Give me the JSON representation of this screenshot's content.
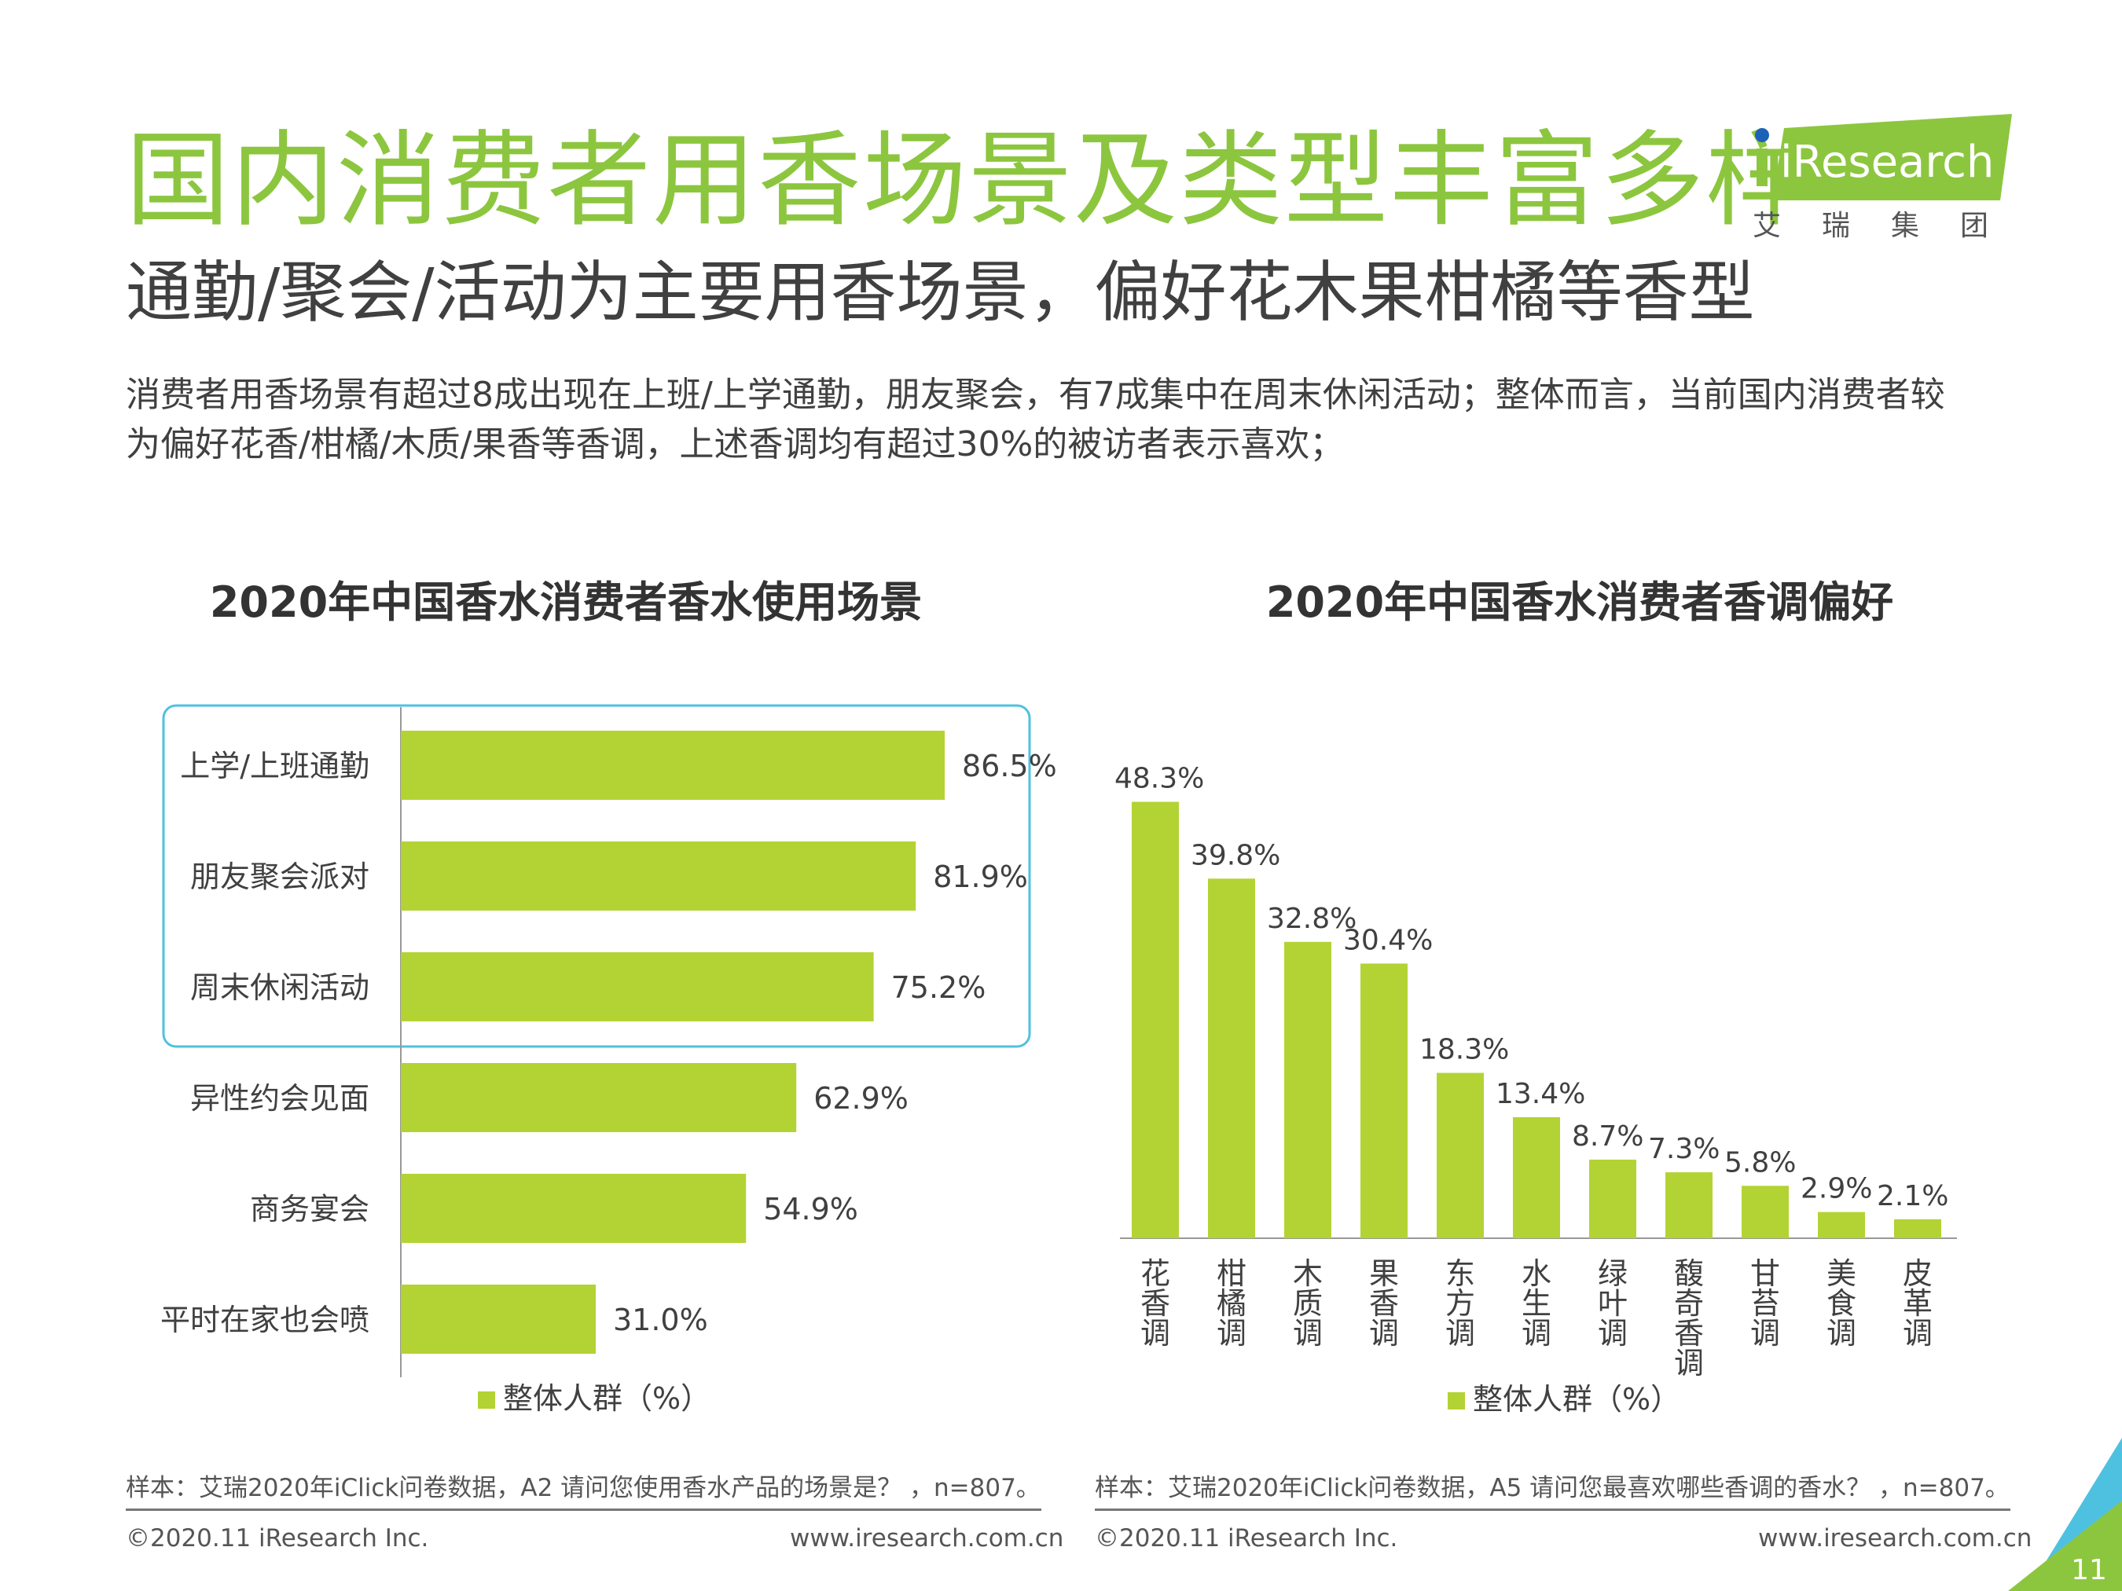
{
  "page": {
    "title": "国内消费者用香场景及类型丰富多样",
    "subtitle": "通勤/聚会/活动为主要用香场景，偏好花木果柑橘等香型",
    "intro_line1": "消费者用香场景有超过8成出现在上班/上学通勤，朋友聚会，有7成集中在周末休闲活动；整体而言，当前国内消费者较",
    "intro_line2": "为偏好花香/柑橘/木质/果香等香调，上述香调均有超过30%的被访者表示喜欢；",
    "page_number": "11"
  },
  "logo": {
    "brand": "iResearch",
    "chinese": "艾瑞集团"
  },
  "colors": {
    "accent_green": "#8cc63f",
    "bar_green": "#b3d334",
    "highlight_box": "#4fc1e0"
  },
  "chart_data": [
    {
      "type": "bar",
      "orientation": "horizontal",
      "title": "2020年中国香水消费者香水使用场景",
      "categories": [
        "上学/上班通勤",
        "朋友聚会派对",
        "周末休闲活动",
        "异性约会见面",
        "商务宴会",
        "平时在家也会喷"
      ],
      "series": [
        {
          "name": "整体人群（%）",
          "values": [
            86.5,
            81.9,
            75.2,
            62.9,
            54.9,
            31.0
          ]
        }
      ],
      "value_labels": [
        "86.5%",
        "81.9%",
        "75.2%",
        "62.9%",
        "54.9%",
        "31.0%"
      ],
      "highlighted_categories": [
        "上学/上班通勤",
        "朋友聚会派对",
        "周末休闲活动"
      ],
      "xlim": [
        0,
        100
      ],
      "legend": "bottom",
      "grid": false,
      "note": "样本：艾瑞2020年iClick问卷数据，A2 请问您使用香水产品的场景是？ ，n=807。"
    },
    {
      "type": "bar",
      "orientation": "vertical",
      "title": "2020年中国香水消费者香调偏好",
      "categories": [
        "花香调",
        "柑橘调",
        "木质调",
        "果香调",
        "东方调",
        "水生调",
        "绿叶调",
        "馥奇香调",
        "甘苔调",
        "美食调",
        "皮革调"
      ],
      "series": [
        {
          "name": "整体人群（%）",
          "values": [
            48.3,
            39.8,
            32.8,
            30.4,
            18.3,
            13.4,
            8.7,
            7.3,
            5.8,
            2.9,
            2.1
          ]
        }
      ],
      "value_labels": [
        "48.3%",
        "39.8%",
        "32.8%",
        "30.4%",
        "18.3%",
        "13.4%",
        "8.7%",
        "7.3%",
        "5.8%",
        "2.9%",
        "2.1%"
      ],
      "ylim": [
        0,
        50
      ],
      "legend": "bottom",
      "grid": false,
      "note": "样本：艾瑞2020年iClick问卷数据，A5 请问您最喜欢哪些香调的香水？ ，n=807。"
    }
  ],
  "footer": {
    "copyright": "©2020.11 iResearch Inc.",
    "website": "www.iresearch.com.cn"
  }
}
